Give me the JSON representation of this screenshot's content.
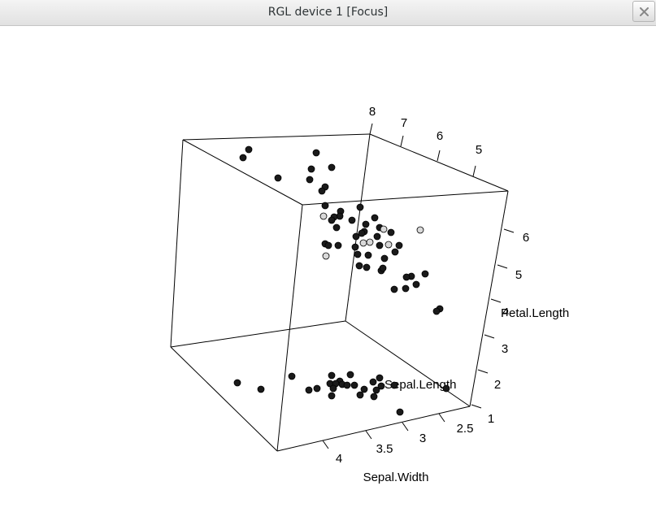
{
  "window": {
    "title": "RGL device 1 [Focus]",
    "close_icon": "close-icon"
  },
  "plot": {
    "axes": {
      "top_ticks": [
        "8",
        "7",
        "6",
        "5"
      ],
      "right_ticks": [
        "6",
        "5",
        "4",
        "3",
        "2",
        "1"
      ],
      "bottom_ticks": [
        "4",
        "3.5",
        "3",
        "2.5"
      ],
      "right_label": "Petal.Length",
      "right_overlap_tick": "4",
      "middle_label": "Sepal.Length",
      "bottom_label": "Sepal.Width"
    },
    "colors": {
      "point_dark": "#1a1a1a",
      "point_light": "#d9d9d9"
    }
  }
}
